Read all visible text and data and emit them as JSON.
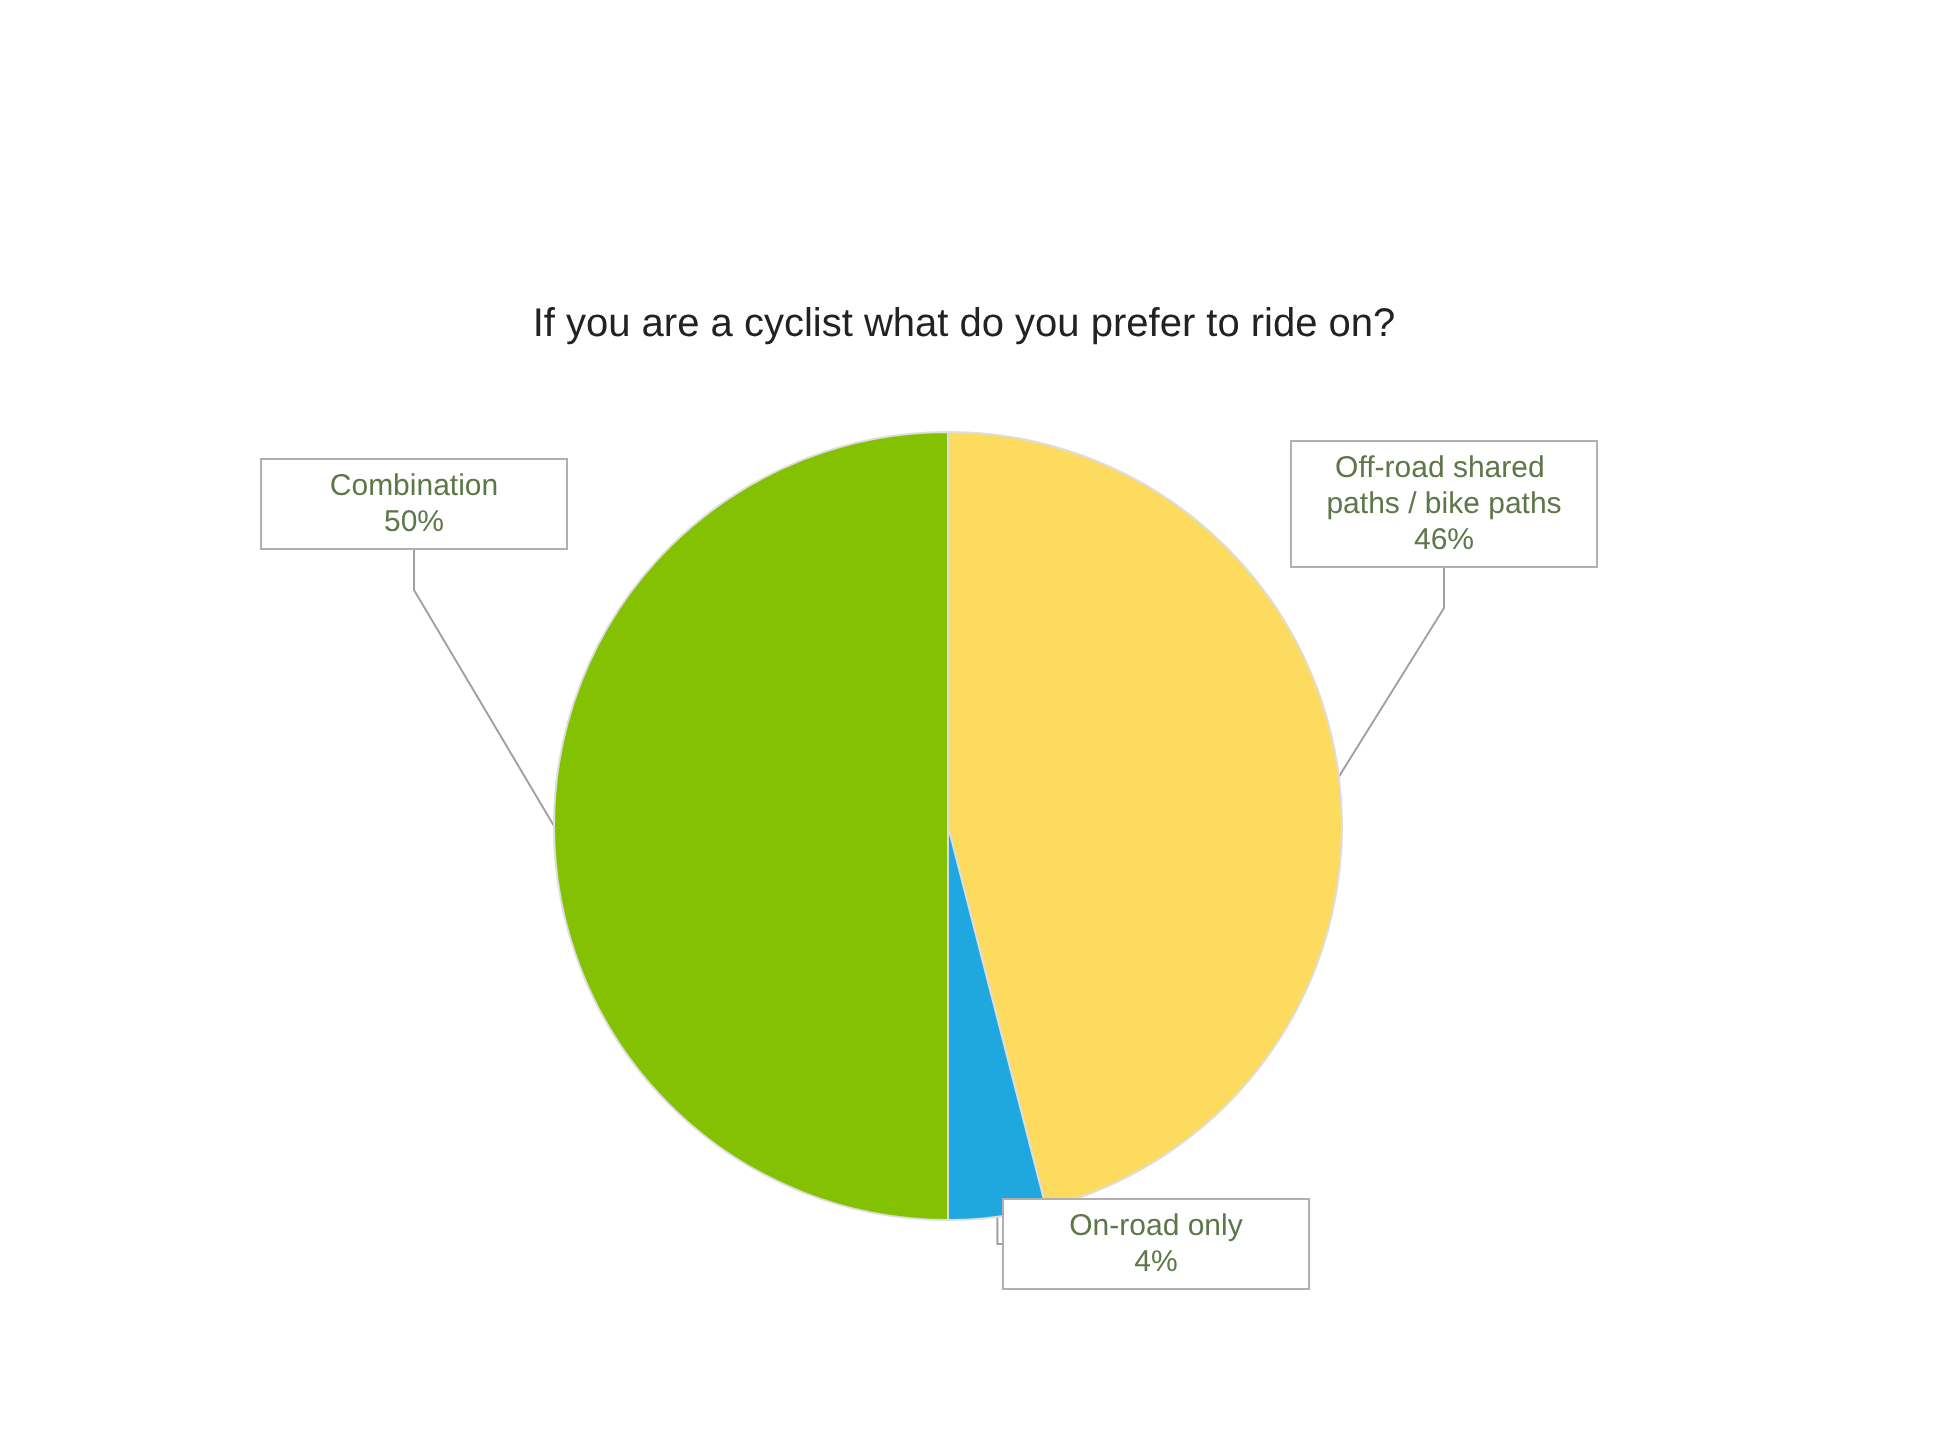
{
  "chart_data": {
    "type": "pie",
    "title": "If you are a cyclist what do you prefer to ride on?",
    "categories": [
      "Off-road shared paths / bike paths",
      "On-road only",
      "Combination"
    ],
    "values": [
      46,
      4,
      50
    ],
    "colors": [
      "#fddb5e",
      "#1fa8e0",
      "#84c103"
    ],
    "value_labels": [
      "46%",
      "4%",
      "50%"
    ],
    "legend": false
  }
}
